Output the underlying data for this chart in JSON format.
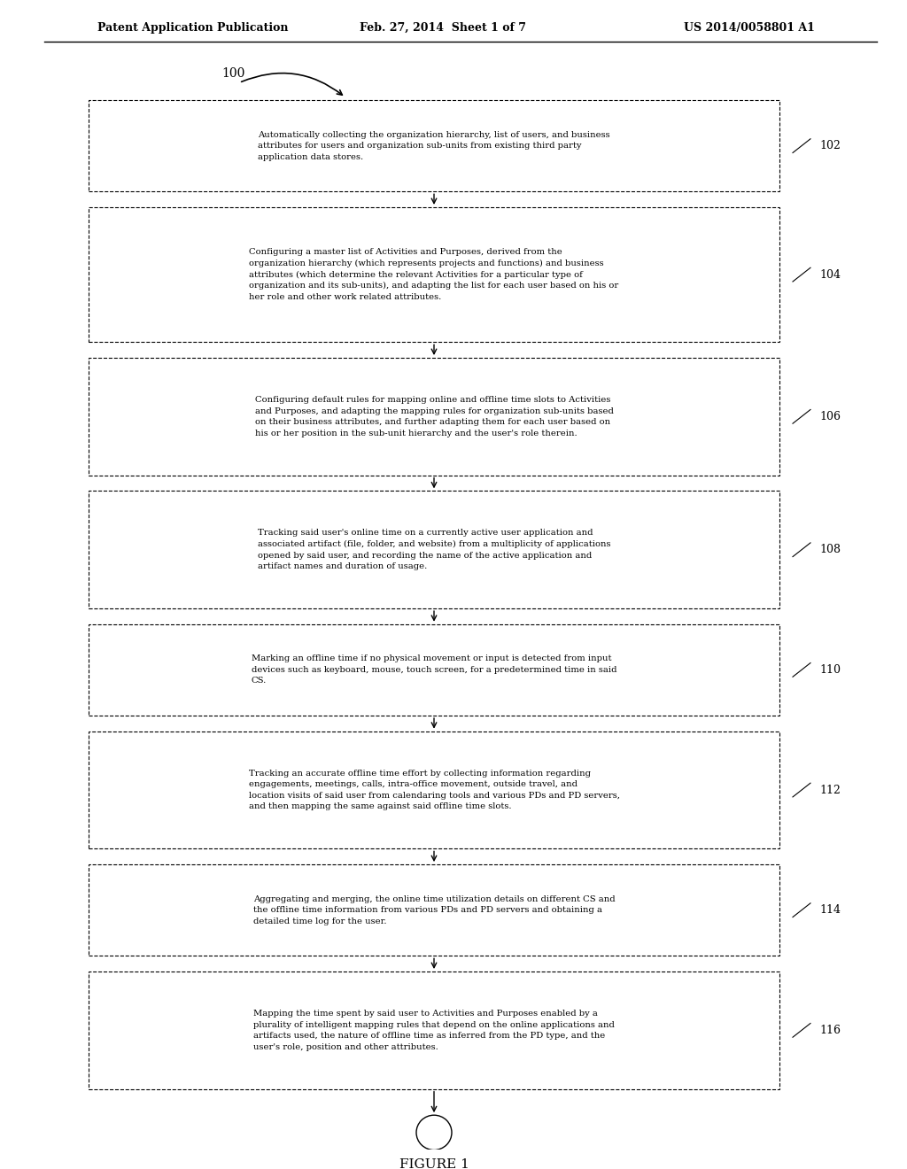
{
  "header_left": "Patent Application Publication",
  "header_center": "Feb. 27, 2014  Sheet 1 of 7",
  "header_right": "US 2014/0058801 A1",
  "figure_label": "FIGURE 1",
  "start_label": "100",
  "background_color": "#ffffff",
  "box_edge_color": "#000000",
  "text_color": "#000000",
  "arrow_color": "#000000",
  "boxes": [
    {
      "id": 102,
      "text": "Automatically collecting the organization hierarchy, list of users, and business\nattributes for users and organization sub-units from existing third party\napplication data stores."
    },
    {
      "id": 104,
      "text": "Configuring a master list of Activities and Purposes, derived from the\norganization hierarchy (which represents projects and functions) and business\nattributes (which determine the relevant Activities for a particular type of\norganization and its sub-units), and adapting the list for each user based on his or\nher role and other work related attributes."
    },
    {
      "id": 106,
      "text": "Configuring default rules for mapping online and offline time slots to Activities\nand Purposes, and adapting the mapping rules for organization sub-units based\non their business attributes, and further adapting them for each user based on\nhis or her position in the sub-unit hierarchy and the user's role therein."
    },
    {
      "id": 108,
      "text": "Tracking said user's online time on a currently active user application and\nassociated artifact (file, folder, and website) from a multiplicity of applications\nopened by said user, and recording the name of the active application and\nartifact names and duration of usage."
    },
    {
      "id": 110,
      "text": "Marking an offline time if no physical movement or input is detected from input\ndevices such as keyboard, mouse, touch screen, for a predetermined time in said\nCS."
    },
    {
      "id": 112,
      "text": "Tracking an accurate offline time effort by collecting information regarding\nengagements, meetings, calls, intra-office movement, outside travel, and\nlocation visits of said user from calendaring tools and various PDs and PD servers,\nand then mapping the same against said offline time slots."
    },
    {
      "id": 114,
      "text": "Aggregating and merging, the online time utilization details on different CS and\nthe offline time information from various PDs and PD servers and obtaining a\ndetailed time log for the user."
    },
    {
      "id": 116,
      "text": "Mapping the time spent by said user to Activities and Purposes enabled by a\nplurality of intelligent mapping rules that depend on the online applications and\nartifacts used, the nature of offline time as inferred from the PD type, and the\nuser's role, position and other attributes."
    }
  ]
}
